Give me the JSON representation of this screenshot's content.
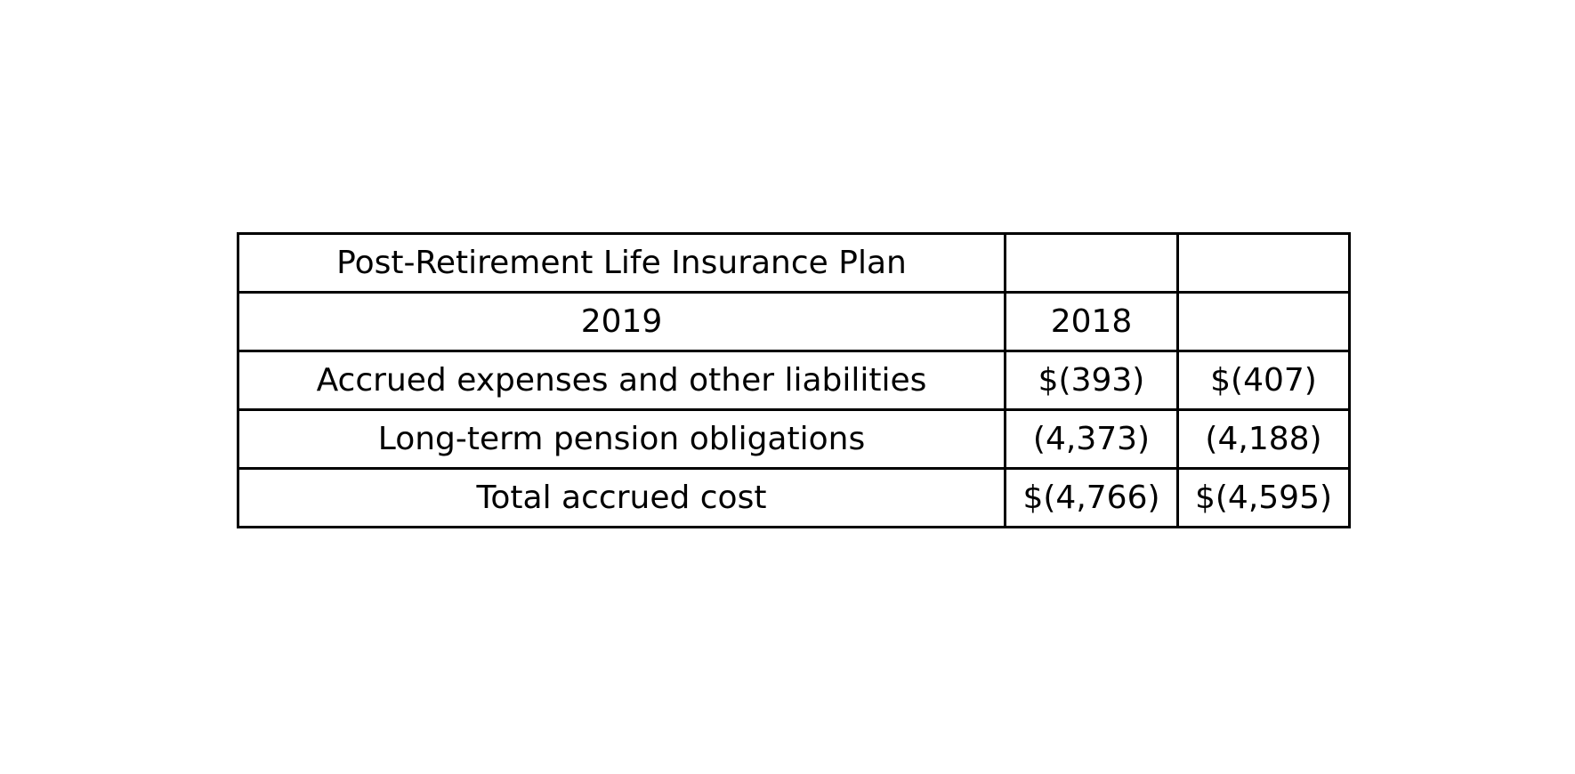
{
  "table": {
    "rows": [
      [
        "Post-Retirement Life Insurance Plan",
        "",
        ""
      ],
      [
        "2019",
        "2018",
        ""
      ],
      [
        "Accrued expenses and other liabilities",
        "$(393)",
        "$(407)"
      ],
      [
        "Long-term pension obligations",
        "(4,373)",
        "(4,188)"
      ],
      [
        "Total accrued cost",
        "$(4,766)",
        "$(4,595)"
      ]
    ]
  }
}
